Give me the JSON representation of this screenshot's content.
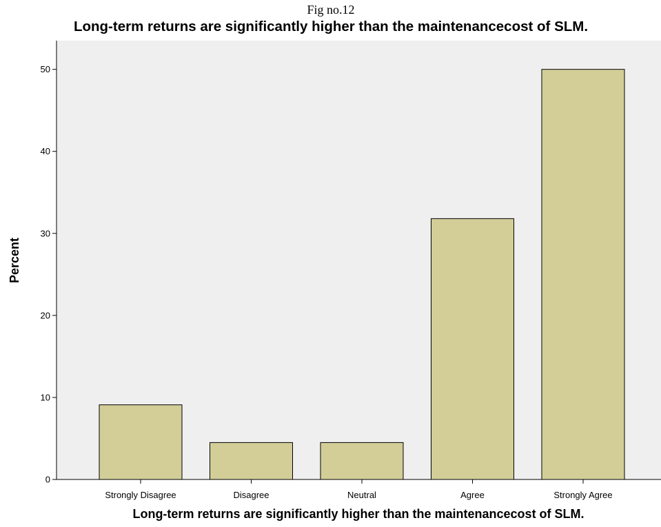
{
  "figure": {
    "label": "Fig no.12"
  },
  "chart_data": {
    "type": "bar",
    "title": "Long-term returns are significantly higher than the maintenancecost of SLM.",
    "xlabel": "Long-term returns are significantly higher than the maintenancecost of SLM.",
    "ylabel": "Percent",
    "categories": [
      "Strongly Disagree",
      "Disagree",
      "Neutral",
      "Agree",
      "Strongly Agree"
    ],
    "values": [
      9.1,
      4.5,
      4.5,
      31.8,
      50.0
    ],
    "ylim": [
      0,
      53.5
    ],
    "yticks": [
      0,
      10,
      20,
      30,
      40,
      50
    ],
    "grid": false,
    "legend": "none",
    "colors": {
      "bar_fill": "#d3ce98",
      "bar_stroke": "#000000",
      "plot_background": "#efefef"
    }
  }
}
